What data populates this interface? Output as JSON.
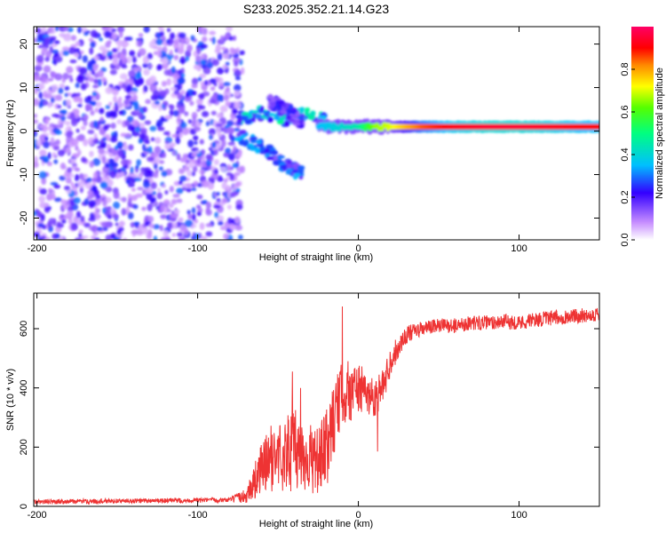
{
  "figure": {
    "title": "S233.2025.352.21.14.G23"
  },
  "chart_data": [
    {
      "type": "heatmap",
      "name": "spectrogram",
      "xlabel": "Height of straight line (km)",
      "ylabel": "Frequency (Hz)",
      "xlim": [
        -202,
        150
      ],
      "ylim": [
        -25,
        24
      ],
      "xticks": [
        -200,
        -100,
        0,
        100
      ],
      "yticks": [
        -20,
        -10,
        0,
        10,
        20
      ],
      "colorbar": {
        "label": "Normalized spectral amplitude",
        "range": [
          0.0,
          1.0
        ],
        "ticks": [
          0.0,
          0.2,
          0.4,
          0.6,
          0.8
        ],
        "tick_labels": [
          "0.0",
          "0.2",
          "0.4",
          "0.6",
          "0.8"
        ]
      },
      "noise_region": {
        "x_range": [
          -202,
          -72
        ],
        "amplitude_range": [
          0.05,
          0.3
        ]
      },
      "signal_trace": {
        "frequency_hz": 1,
        "x": [
          -25,
          -12,
          0,
          10,
          20,
          30,
          40,
          60,
          80,
          100,
          120,
          140,
          150
        ],
        "amplitude": [
          0.35,
          0.4,
          0.45,
          0.65,
          0.7,
          0.78,
          0.85,
          0.92,
          0.95,
          0.95,
          0.93,
          0.9,
          0.9
        ]
      },
      "scatter_branches": [
        {
          "x": [
            -75,
            -60,
            -45,
            -30,
            -20
          ],
          "frequency_hz": [
            3,
            4,
            3,
            4,
            2
          ],
          "amplitude": 0.35
        },
        {
          "x": [
            -75,
            -65,
            -55,
            -45,
            -35
          ],
          "frequency_hz": [
            -1,
            -3,
            -5,
            -8,
            -10
          ],
          "amplitude": 0.25
        },
        {
          "x": [
            -55,
            -45,
            -35
          ],
          "frequency_hz": [
            7,
            5,
            2
          ],
          "amplitude": 0.2
        }
      ]
    },
    {
      "type": "line",
      "name": "snr",
      "xlabel": "Height of straight line (km)",
      "ylabel": "SNR (10 * v/v)",
      "xlim": [
        -202,
        150
      ],
      "ylim": [
        0,
        720
      ],
      "xticks": [
        -200,
        -100,
        0,
        100
      ],
      "yticks": [
        0,
        200,
        400,
        600
      ],
      "series": [
        {
          "name": "SNR",
          "color": "#ee3333",
          "x": [
            -202,
            -150,
            -100,
            -80,
            -70,
            -65,
            -60,
            -55,
            -50,
            -45,
            -40,
            -35,
            -30,
            -25,
            -20,
            -15,
            -10,
            -5,
            0,
            5,
            10,
            15,
            20,
            25,
            30,
            40,
            50,
            60,
            70,
            80,
            90,
            100,
            110,
            120,
            130,
            140,
            150
          ],
          "y": [
            15,
            18,
            20,
            22,
            35,
            80,
            130,
            160,
            170,
            180,
            190,
            175,
            160,
            150,
            190,
            300,
            380,
            390,
            400,
            380,
            370,
            400,
            490,
            540,
            580,
            600,
            610,
            610,
            620,
            620,
            625,
            620,
            630,
            635,
            640,
            645,
            650
          ],
          "noise_amplitude": [
            8,
            8,
            8,
            8,
            25,
            60,
            90,
            110,
            120,
            130,
            140,
            130,
            120,
            110,
            140,
            120,
            110,
            110,
            90,
            70,
            70,
            60,
            50,
            40,
            30,
            25,
            25,
            25,
            25,
            25,
            25,
            25,
            25,
            25,
            25,
            25,
            25
          ]
        }
      ],
      "peaks": [
        {
          "x": -41,
          "y": 455
        },
        {
          "x": -36,
          "y": 400
        },
        {
          "x": -10,
          "y": 675
        },
        {
          "x": 12,
          "y": 185
        }
      ]
    }
  ],
  "colors": {
    "background": "#ffffff",
    "axis": "#000000",
    "snr_line": "#ee3333"
  }
}
